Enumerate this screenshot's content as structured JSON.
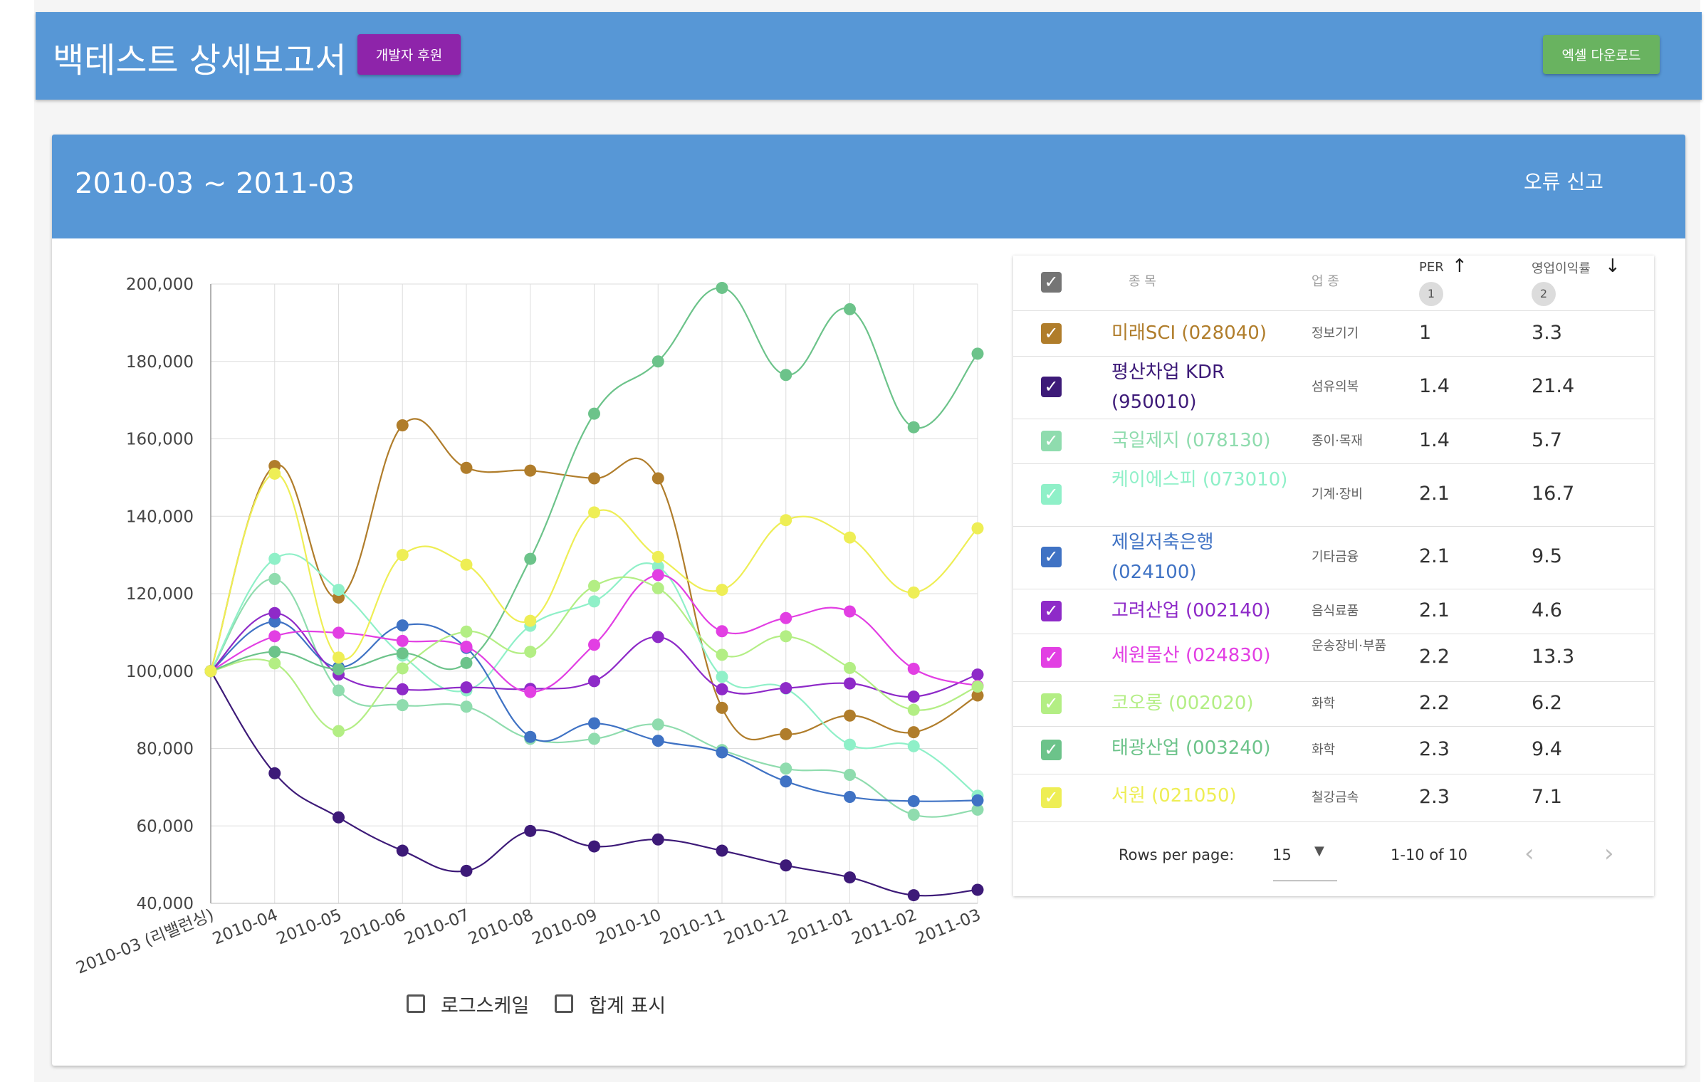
{
  "header": {
    "title": "백테스트 상세보고서",
    "sponsor_label": "개발자 후원",
    "excel_label": "엑셀 다운로드"
  },
  "card": {
    "period": "2010-03 ~ 2011-03",
    "report_label": "오류 신고"
  },
  "options": {
    "log_scale": "로그스케일",
    "show_total": "합계 표시"
  },
  "table": {
    "headers": {
      "name": "종 목",
      "industry": "업 종",
      "per": "PER",
      "op": "영업이익률",
      "per_sort": "1",
      "op_sort": "2"
    },
    "rows": [
      {
        "name": "미래SCI (028040)",
        "industry": "정보기기",
        "per": "1",
        "op": "3.3",
        "color": "#b07d2b"
      },
      {
        "name": "평산차업 KDR (950010)",
        "industry": "섬유의복",
        "per": "1.4",
        "op": "21.4",
        "color": "#3d1a78"
      },
      {
        "name": "국일제지 (078130)",
        "industry": "종이·목재",
        "per": "1.4",
        "op": "5.7",
        "color": "#8fdcae"
      },
      {
        "name": "케이에스피 (073010)",
        "industry": "기계·장비",
        "per": "2.1",
        "op": "16.7",
        "color": "#8ff0c8"
      },
      {
        "name": "제일저축은행 (024100)",
        "industry": "기타금융",
        "per": "2.1",
        "op": "9.5",
        "color": "#3f72c4"
      },
      {
        "name": "고려산업 (002140)",
        "industry": "음식료품",
        "per": "2.1",
        "op": "4.6",
        "color": "#8e2ac8"
      },
      {
        "name": "세원물산 (024830)",
        "industry": "운송장비·부품",
        "per": "2.2",
        "op": "13.3",
        "color": "#e23fe3"
      },
      {
        "name": "코오롱 (002020)",
        "industry": "화학",
        "per": "2.2",
        "op": "6.2",
        "color": "#b3ee84"
      },
      {
        "name": "태광산업 (003240)",
        "industry": "화학",
        "per": "2.3",
        "op": "9.4",
        "color": "#6cc38a"
      },
      {
        "name": "서원 (021050)",
        "industry": "철강금속",
        "per": "2.3",
        "op": "7.1",
        "color": "#eeee55"
      }
    ],
    "footer": {
      "rows_per_page_label": "Rows per page:",
      "rows_per_page": "15",
      "range": "1-10 of 10"
    }
  },
  "chart_data": {
    "type": "line",
    "categories": [
      "2010-03 (리밸런싱)",
      "2010-04",
      "2010-05",
      "2010-06",
      "2010-07",
      "2010-08",
      "2010-09",
      "2010-10",
      "2010-11",
      "2010-12",
      "2011-01",
      "2011-02",
      "2011-03"
    ],
    "ylim": [
      40000,
      200000
    ],
    "yticks": [
      "40,000",
      "60,000",
      "80,000",
      "100,000",
      "120,000",
      "140,000",
      "160,000",
      "180,000",
      "200,000"
    ],
    "grid": true,
    "series": [
      {
        "name": "미래SCI (028040)",
        "color": "#b07d2b",
        "values": [
          100000,
          153000,
          119000,
          163500,
          152500,
          151800,
          149800,
          149800,
          90500,
          83700,
          88500,
          84200,
          93700
        ]
      },
      {
        "name": "평산차업 KDR (950010)",
        "color": "#3d1a78",
        "values": [
          100000,
          73600,
          62200,
          53600,
          48400,
          58700,
          54700,
          56500,
          53600,
          49800,
          46700,
          42100,
          43500
        ]
      },
      {
        "name": "국일제지 (078130)",
        "color": "#8fdcae",
        "values": [
          100000,
          123800,
          95000,
          91200,
          90800,
          82500,
          82500,
          86200,
          79600,
          74800,
          73200,
          62900,
          64200
        ]
      },
      {
        "name": "케이에스피 (073010)",
        "color": "#8ff0c8",
        "values": [
          100000,
          129000,
          121000,
          104000,
          95000,
          111700,
          118000,
          127000,
          98500,
          95500,
          81000,
          80600,
          67800
        ]
      },
      {
        "name": "제일저축은행 (024100)",
        "color": "#3f72c4",
        "values": [
          100000,
          112800,
          101000,
          111800,
          106000,
          83000,
          86500,
          82000,
          79000,
          71500,
          67500,
          66400,
          66600
        ]
      },
      {
        "name": "고려산업 (002140)",
        "color": "#8e2ac8",
        "values": [
          100000,
          115000,
          99100,
          95300,
          95800,
          95400,
          97400,
          108800,
          95300,
          95600,
          96800,
          93400,
          99100
        ]
      },
      {
        "name": "세원물산 (024830)",
        "color": "#e23fe3",
        "values": [
          100000,
          109000,
          109900,
          107800,
          106300,
          94600,
          106800,
          124800,
          110300,
          113700,
          115400,
          100600,
          96200
        ]
      },
      {
        "name": "코오롱 (002020)",
        "color": "#b3ee84",
        "values": [
          100000,
          102000,
          84500,
          100700,
          110200,
          105000,
          122000,
          121400,
          104200,
          109000,
          100800,
          90000,
          96000
        ]
      },
      {
        "name": "태광산업 (003240)",
        "color": "#6cc38a",
        "values": [
          100000,
          105000,
          100500,
          104600,
          102100,
          129000,
          166500,
          180000,
          199000,
          176500,
          193500,
          163000,
          182000
        ]
      },
      {
        "name": "서원 (021050)",
        "color": "#eeee55",
        "values": [
          100000,
          151000,
          103500,
          130000,
          127500,
          113000,
          141000,
          129500,
          121000,
          139000,
          134500,
          120300,
          136900
        ]
      }
    ]
  }
}
